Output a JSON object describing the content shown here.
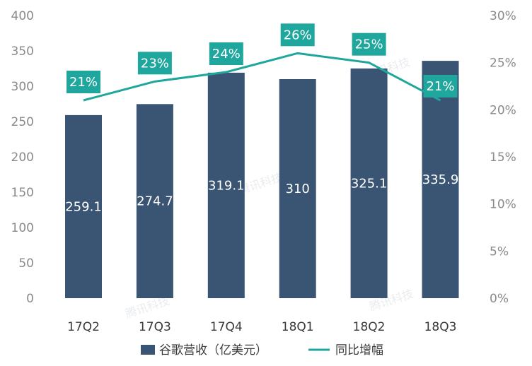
{
  "chart_data": {
    "type": "bar",
    "categories": [
      "17Q2",
      "17Q3",
      "17Q4",
      "18Q1",
      "18Q2",
      "18Q3"
    ],
    "series": [
      {
        "name": "谷歌营收（亿美元）",
        "type": "bar",
        "axis": "left",
        "color": "#3a5573",
        "values": [
          259.1,
          274.7,
          319.1,
          310,
          325.1,
          335.9
        ]
      },
      {
        "name": "同比增幅",
        "type": "line",
        "axis": "right",
        "color": "#1fa79d",
        "values": [
          21,
          23,
          24,
          26,
          25,
          21
        ],
        "labels": [
          "21%",
          "23%",
          "24%",
          "26%",
          "25%",
          "21%"
        ]
      }
    ],
    "bar_labels": [
      "259.1",
      "274.7",
      "319.1",
      "310",
      "325.1",
      "335.9"
    ],
    "y_left": {
      "min": 0,
      "max": 400,
      "ticks": [
        "0",
        "50",
        "100",
        "150",
        "200",
        "250",
        "300",
        "350",
        "400"
      ]
    },
    "y_right": {
      "min": 0,
      "max": 30,
      "ticks": [
        "0%",
        "5%",
        "10%",
        "15%",
        "20%",
        "25%",
        "30%"
      ]
    },
    "legend_position": "bottom",
    "grid": false,
    "watermark": "腾讯科技"
  }
}
